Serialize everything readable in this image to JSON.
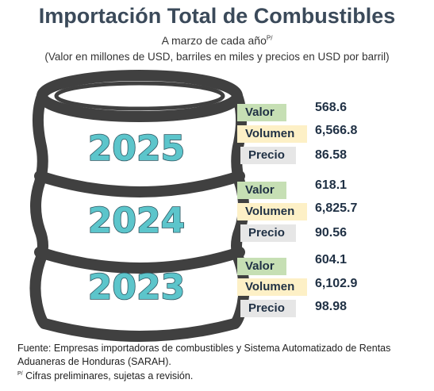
{
  "title": "Importación Total de Combustibles",
  "subtitle": "A marzo de cada año",
  "subtitle_sup": "P/",
  "units": "(Valor en millones de USD, barriles en miles y precios en USD por barril)",
  "labels": {
    "valor": "Valor",
    "volumen": "Volumen",
    "precio": "Precio"
  },
  "years": [
    {
      "year": "2025",
      "valor": "568.6",
      "volumen": "6,566.8",
      "precio": "86.58"
    },
    {
      "year": "2024",
      "valor": "618.1",
      "volumen": "6,825.7",
      "precio": "90.56"
    },
    {
      "year": "2023",
      "valor": "604.1",
      "volumen": "6,102.9",
      "precio": "98.98"
    }
  ],
  "footer": {
    "line1": "Fuente: Empresas importadoras de combustibles y Sistema Automatizado de Rentas",
    "line2": "Aduaneras de Honduras (SARAH).",
    "note_sup": "P/",
    "note": " Cifras preliminares, sujetas a revisión."
  },
  "colors": {
    "title": "#3b4a5a",
    "year_fill": "#5cc5cb",
    "barrel_outline": "#404040",
    "valor_bg": "#c6dfb4",
    "volumen_bg": "#fdf0c6",
    "precio_bg": "#e6e6e6"
  }
}
